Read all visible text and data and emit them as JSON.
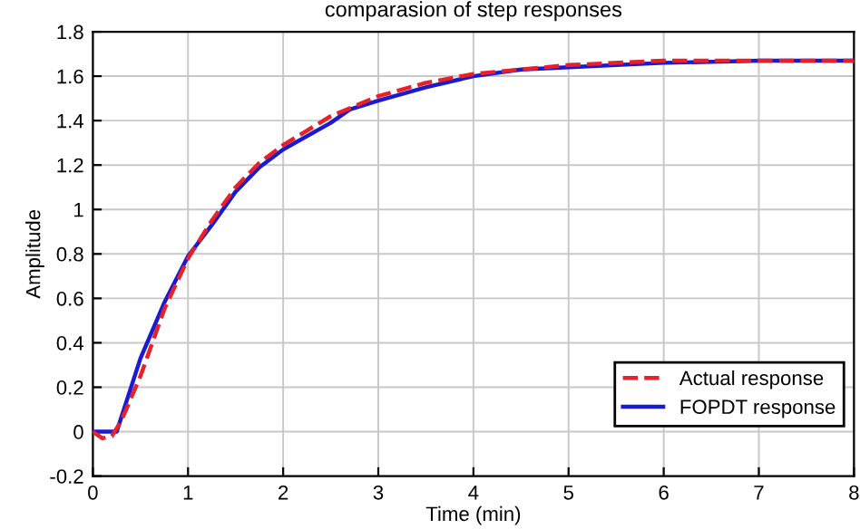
{
  "chart_data": {
    "type": "line",
    "title": "comparasion of step responses",
    "xlabel": "Time (min)",
    "ylabel": "Amplitude",
    "xlim": [
      0,
      8
    ],
    "ylim": [
      -0.2,
      1.8
    ],
    "xticks": [
      0,
      1,
      2,
      3,
      4,
      5,
      6,
      7,
      8
    ],
    "yticks": [
      -0.2,
      0,
      0.2,
      0.4,
      0.6,
      0.8,
      1,
      1.2,
      1.4,
      1.6,
      1.8
    ],
    "grid": true,
    "legend": "bottom right",
    "series": [
      {
        "name": "Actual response",
        "color": "#e8202a",
        "line_style": "dashed",
        "x": [
          0,
          0.1,
          0.2,
          0.3,
          0.5,
          0.75,
          1,
          1.25,
          1.5,
          1.75,
          2,
          2.5,
          3,
          3.5,
          4,
          4.5,
          5,
          6,
          7,
          8
        ],
        "values": [
          0,
          -0.03,
          -0.02,
          0.05,
          0.25,
          0.55,
          0.78,
          0.95,
          1.1,
          1.21,
          1.29,
          1.42,
          1.51,
          1.57,
          1.61,
          1.63,
          1.65,
          1.67,
          1.67,
          1.67
        ]
      },
      {
        "name": "FOPDT response",
        "color": "#1a1ad0",
        "line_style": "solid",
        "x": [
          0,
          0.25,
          0.5,
          0.75,
          1,
          1.25,
          1.5,
          1.75,
          2,
          2.5,
          2.7,
          3,
          3.5,
          4,
          4.5,
          5,
          6,
          7,
          8
        ],
        "values": [
          0,
          0,
          0.33,
          0.58,
          0.79,
          0.93,
          1.08,
          1.19,
          1.27,
          1.39,
          1.45,
          1.49,
          1.55,
          1.6,
          1.63,
          1.64,
          1.66,
          1.67,
          1.67
        ]
      }
    ]
  }
}
